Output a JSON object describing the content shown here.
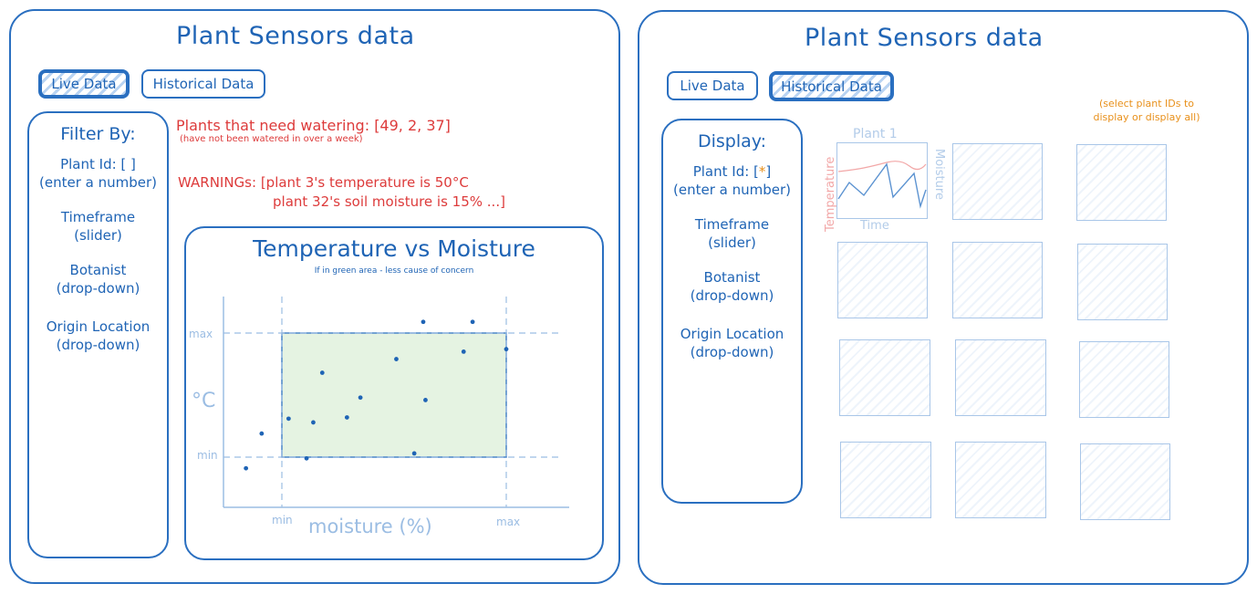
{
  "left": {
    "title": "Plant Sensors data",
    "tabs": [
      "Live Data",
      "Historical Data"
    ],
    "sidebar": {
      "heading": "Filter By:",
      "items": [
        {
          "line1": "Plant Id: [ ]",
          "line2": "(enter a number)"
        },
        {
          "line1": "Timeframe",
          "line2": "(slider)"
        },
        {
          "line1": "Botanist",
          "line2": "(drop-down)"
        },
        {
          "line1": "Origin Location",
          "line2": "(drop-down)"
        }
      ]
    },
    "watering": "Plants that need watering: [49, 2, 37]",
    "watering_note": "(have not been watered in over a week)",
    "warnings_line1": "WARNINGs: [plant 3's temperature is 50°C",
    "warnings_line2": "plant 32's soil moisture is 15% ...]",
    "chart_title": "Temperature vs Moisture",
    "chart_subtitle": "If in green area - less cause of concern"
  },
  "right": {
    "title": "Plant Sensors data",
    "tabs": [
      "Live Data",
      "Historical Data"
    ],
    "note_line1": "(select plant IDs to",
    "note_line2": "display or display all)",
    "sidebar": {
      "heading": "Display:",
      "items": [
        {
          "line1_a": "Plant Id: [",
          "line1_star": "*",
          "line1_b": "]",
          "line2": "(enter a number)"
        },
        {
          "line1": "Timeframe",
          "line2": "(slider)"
        },
        {
          "line1": "Botanist",
          "line2": "(drop-down)"
        },
        {
          "line1": "Origin Location",
          "line2": "(drop-down)"
        }
      ]
    },
    "mini_chart": {
      "title": "Plant 1",
      "ylabel_left": "Temperature",
      "ylabel_right": "Moisture",
      "xlabel": "Time"
    }
  },
  "chart_data": {
    "type": "scatter",
    "title": "Temperature vs Moisture",
    "subtitle": "If in green area - less cause of concern",
    "xlabel": "moisture (%)",
    "ylabel": "°C",
    "x_ticks": [
      "min",
      "max"
    ],
    "y_ticks": [
      "max",
      "min"
    ],
    "safe_zone": {
      "x": [
        "min",
        "max"
      ],
      "y": [
        "min",
        "max"
      ]
    },
    "points": [
      [
        -0.16,
        -0.09
      ],
      [
        -0.09,
        0.19
      ],
      [
        0.03,
        0.31
      ],
      [
        0.14,
        0.28
      ],
      [
        0.18,
        0.68
      ],
      [
        0.29,
        0.32
      ],
      [
        0.35,
        0.48
      ],
      [
        0.51,
        0.79
      ],
      [
        0.59,
        0.03
      ],
      [
        0.63,
        1.09
      ],
      [
        0.64,
        0.46
      ],
      [
        0.81,
        0.85
      ],
      [
        0.85,
        1.09
      ],
      [
        1.0,
        0.87
      ],
      [
        0.11,
        -0.01
      ]
    ],
    "colors": {
      "point": "#1f64b5",
      "zone": "#cfeacb",
      "axis": "#9bbde3"
    }
  }
}
